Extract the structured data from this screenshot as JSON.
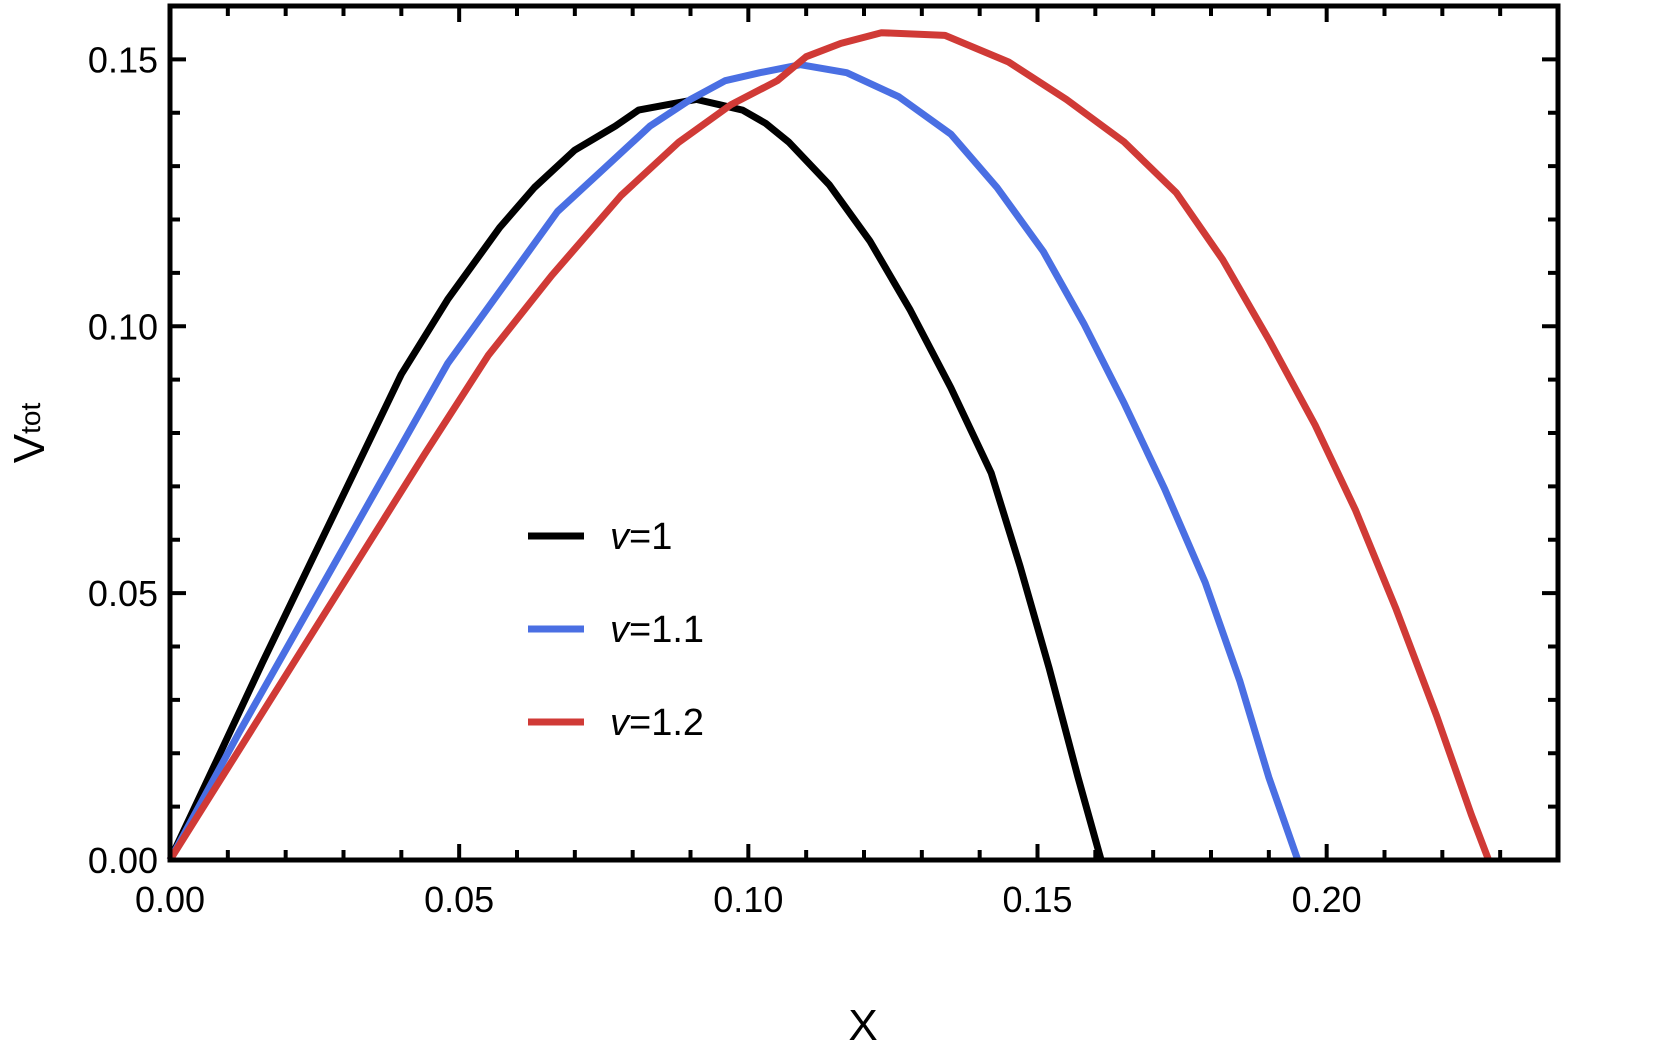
{
  "chart_data": {
    "type": "line",
    "title": "",
    "xlabel": "X",
    "ylabel": {
      "main": "V",
      "sub": "tot"
    },
    "xlim": [
      0,
      0.24
    ],
    "ylim": [
      0,
      0.16
    ],
    "grid": false,
    "legend_position": "center-left",
    "x_ticks": [
      {
        "value": 0.0,
        "label": "0.00"
      },
      {
        "value": 0.05,
        "label": "0.05"
      },
      {
        "value": 0.1,
        "label": "0.10"
      },
      {
        "value": 0.15,
        "label": "0.15"
      },
      {
        "value": 0.2,
        "label": "0.20"
      }
    ],
    "y_ticks": [
      {
        "value": 0.0,
        "label": "0.00"
      },
      {
        "value": 0.05,
        "label": "0.05"
      },
      {
        "value": 0.1,
        "label": "0.10"
      },
      {
        "value": 0.15,
        "label": "0.15"
      }
    ],
    "x_minor_step": 0.01,
    "y_minor_step": 0.01,
    "series": [
      {
        "name": "v=1",
        "legend_var": "v",
        "legend_value": "=1",
        "color": "#000000",
        "x": [
          0.0,
          0.008,
          0.016,
          0.024,
          0.032,
          0.04,
          0.048,
          0.057,
          0.063,
          0.07,
          0.077,
          0.081,
          0.086,
          0.091,
          0.095,
          0.099,
          0.103,
          0.107,
          0.114,
          0.121,
          0.128,
          0.135,
          0.142,
          0.147,
          0.152,
          0.157,
          0.161
        ],
        "y": [
          0.0,
          0.0185,
          0.037,
          0.055,
          0.073,
          0.091,
          0.105,
          0.1185,
          0.126,
          0.133,
          0.1375,
          0.1405,
          0.1415,
          0.1425,
          0.1415,
          0.1405,
          0.138,
          0.1345,
          0.1265,
          0.116,
          0.103,
          0.0885,
          0.0725,
          0.055,
          0.036,
          0.0155,
          0.0
        ]
      },
      {
        "name": "v=1.1",
        "legend_var": "v",
        "legend_value": "=1.1",
        "color": "#4a6fe3",
        "x": [
          0.0,
          0.012,
          0.024,
          0.036,
          0.048,
          0.057,
          0.067,
          0.075,
          0.083,
          0.09,
          0.096,
          0.102,
          0.109,
          0.117,
          0.126,
          0.135,
          0.143,
          0.151,
          0.158,
          0.165,
          0.172,
          0.179,
          0.185,
          0.19,
          0.195
        ],
        "y": [
          0.0,
          0.024,
          0.047,
          0.07,
          0.093,
          0.1065,
          0.1215,
          0.1295,
          0.1375,
          0.1425,
          0.146,
          0.1475,
          0.149,
          0.1475,
          0.143,
          0.136,
          0.126,
          0.114,
          0.1005,
          0.0855,
          0.0695,
          0.052,
          0.0335,
          0.0155,
          0.0
        ]
      },
      {
        "name": "v=1.2",
        "legend_var": "v",
        "legend_value": "=1.2",
        "color": "#d03a36",
        "x": [
          0.0,
          0.011,
          0.022,
          0.033,
          0.044,
          0.055,
          0.066,
          0.078,
          0.088,
          0.097,
          0.105,
          0.11,
          0.116,
          0.123,
          0.134,
          0.145,
          0.155,
          0.165,
          0.174,
          0.182,
          0.19,
          0.198,
          0.205,
          0.212,
          0.219,
          0.225,
          0.228
        ],
        "y": [
          0.0,
          0.019,
          0.038,
          0.057,
          0.076,
          0.0945,
          0.1095,
          0.1245,
          0.1345,
          0.1415,
          0.146,
          0.1505,
          0.153,
          0.155,
          0.1545,
          0.1495,
          0.1425,
          0.1345,
          0.125,
          0.1125,
          0.0975,
          0.0815,
          0.0655,
          0.047,
          0.027,
          0.0085,
          0.0
        ]
      }
    ]
  }
}
